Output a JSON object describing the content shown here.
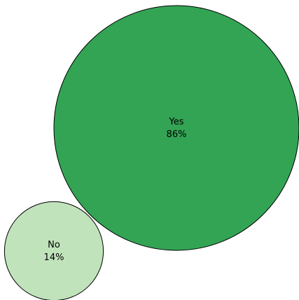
{
  "chart_data": {
    "type": "bubble",
    "title": "",
    "unit": "%",
    "items": [
      {
        "label": "Yes",
        "value": 86,
        "value_text": "86%",
        "color": "#33a454"
      },
      {
        "label": "No",
        "value": 14,
        "value_text": "14%",
        "color": "#c0e3bc"
      }
    ],
    "stroke_color": "#000000"
  }
}
